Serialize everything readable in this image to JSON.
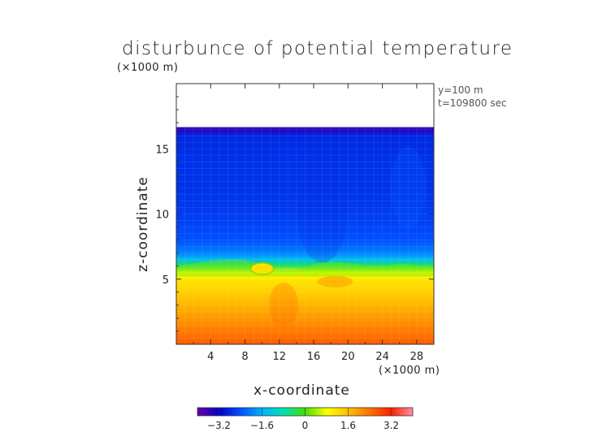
{
  "chart_data": {
    "type": "heatmap",
    "title": "disturbunce of potential temperature",
    "top_axis_unit": "(×1000 m)",
    "annotations": [
      "y=100 m",
      "t=109800 sec"
    ],
    "xlabel": "x-coordinate",
    "ylabel": "z-coordinate",
    "x_unit": "(×1000 m)",
    "xlim": [
      0,
      30
    ],
    "ylim": [
      0,
      20
    ],
    "x_ticks": [
      4,
      8,
      12,
      16,
      20,
      24,
      28
    ],
    "y_ticks": [
      5,
      10,
      15
    ],
    "data_top_z": 16.6,
    "colorbar": {
      "ticks": [
        "−3.2",
        "−1.6",
        "0",
        "1.6",
        "3.2"
      ],
      "range": [
        -4,
        4
      ],
      "colors": [
        "#6a00a8",
        "#0000c8",
        "#0050ff",
        "#00b4ff",
        "#00e0b0",
        "#40e000",
        "#ffff00",
        "#ffc000",
        "#ff7000",
        "#ff2000",
        "#ff90a0"
      ]
    },
    "approx_profile": {
      "z": [
        0,
        1,
        2,
        3,
        4,
        5,
        5.5,
        6,
        6.5,
        7,
        8,
        10,
        12,
        14,
        16,
        16.5
      ],
      "value": [
        2.6,
        2.3,
        2.0,
        1.7,
        1.4,
        1.1,
        0.8,
        -0.4,
        -1.4,
        -2.0,
        -2.4,
        -2.6,
        -2.7,
        -2.7,
        -2.8,
        -3.5
      ]
    }
  }
}
